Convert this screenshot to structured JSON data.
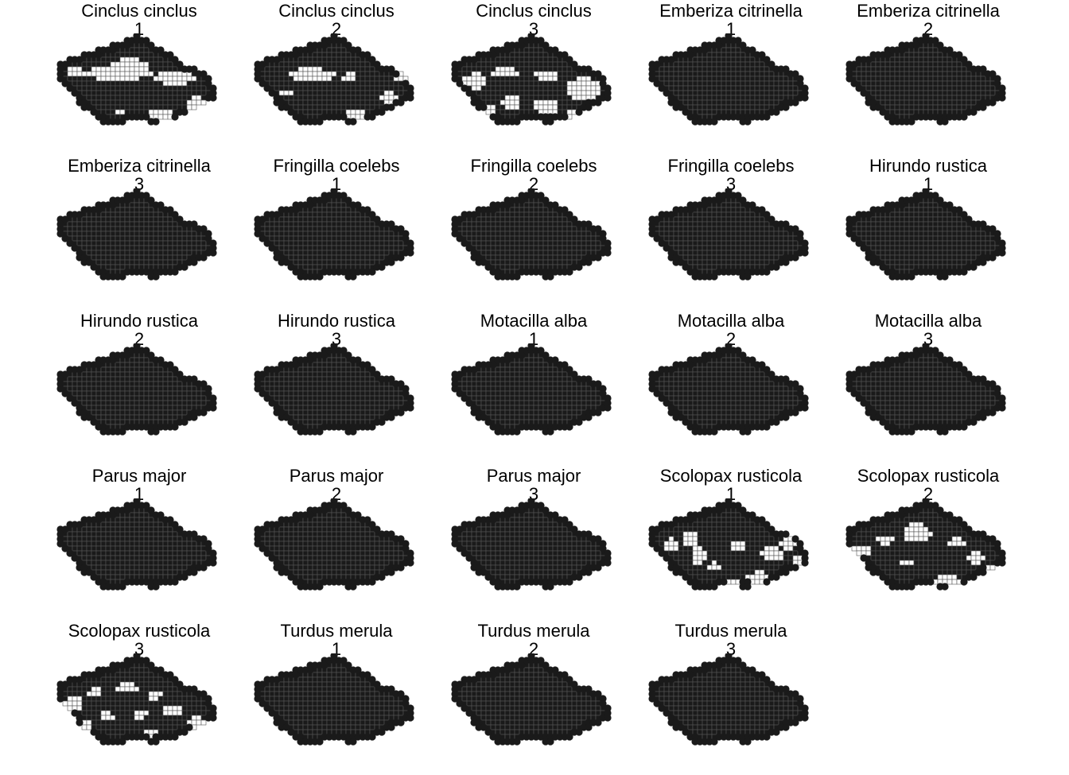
{
  "colors": {
    "background": "#ffffff",
    "occupied_fill": "#1a1a1a",
    "grid_stroke": "#555555",
    "empty_fill": "#ffffff",
    "text": "#000000"
  },
  "figure": {
    "type": "faceted-maps",
    "columns": 5,
    "panels": [
      {
        "species": "Cinclus cinclus",
        "period": "1",
        "coverage": "partial",
        "gap_pattern": "a"
      },
      {
        "species": "Cinclus cinclus",
        "period": "2",
        "coverage": "partial",
        "gap_pattern": "b"
      },
      {
        "species": "Cinclus cinclus",
        "period": "3",
        "coverage": "partial",
        "gap_pattern": "c"
      },
      {
        "species": "Emberiza citrinella",
        "period": "1",
        "coverage": "full"
      },
      {
        "species": "Emberiza citrinella",
        "period": "2",
        "coverage": "full"
      },
      {
        "species": "Emberiza citrinella",
        "period": "3",
        "coverage": "full"
      },
      {
        "species": "Fringilla coelebs",
        "period": "1",
        "coverage": "full"
      },
      {
        "species": "Fringilla coelebs",
        "period": "2",
        "coverage": "full"
      },
      {
        "species": "Fringilla coelebs",
        "period": "3",
        "coverage": "full"
      },
      {
        "species": "Hirundo rustica",
        "period": "1",
        "coverage": "full"
      },
      {
        "species": "Hirundo rustica",
        "period": "2",
        "coverage": "full"
      },
      {
        "species": "Hirundo rustica",
        "period": "3",
        "coverage": "full"
      },
      {
        "species": "Motacilla alba",
        "period": "1",
        "coverage": "full"
      },
      {
        "species": "Motacilla alba",
        "period": "2",
        "coverage": "full"
      },
      {
        "species": "Motacilla alba",
        "period": "3",
        "coverage": "full"
      },
      {
        "species": "Parus major",
        "period": "1",
        "coverage": "full"
      },
      {
        "species": "Parus major",
        "period": "2",
        "coverage": "full"
      },
      {
        "species": "Parus major",
        "period": "3",
        "coverage": "full"
      },
      {
        "species": "Scolopax rusticola",
        "period": "1",
        "coverage": "patchy",
        "gap_pattern": "d"
      },
      {
        "species": "Scolopax rusticola",
        "period": "2",
        "coverage": "patchy",
        "gap_pattern": "e"
      },
      {
        "species": "Scolopax rusticola",
        "period": "3",
        "coverage": "patchy",
        "gap_pattern": "f"
      },
      {
        "species": "Turdus merula",
        "period": "1",
        "coverage": "full"
      },
      {
        "species": "Turdus merula",
        "period": "2",
        "coverage": "full"
      },
      {
        "species": "Turdus merula",
        "period": "3",
        "coverage": "full"
      }
    ]
  }
}
